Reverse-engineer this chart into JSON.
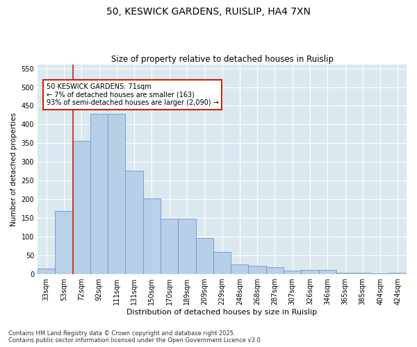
{
  "title1": "50, KESWICK GARDENS, RUISLIP, HA4 7XN",
  "title2": "Size of property relative to detached houses in Ruislip",
  "xlabel": "Distribution of detached houses by size in Ruislip",
  "ylabel": "Number of detached properties",
  "categories": [
    "33sqm",
    "53sqm",
    "72sqm",
    "92sqm",
    "111sqm",
    "131sqm",
    "150sqm",
    "170sqm",
    "189sqm",
    "209sqm",
    "229sqm",
    "248sqm",
    "268sqm",
    "287sqm",
    "307sqm",
    "326sqm",
    "346sqm",
    "365sqm",
    "385sqm",
    "404sqm",
    "424sqm"
  ],
  "values": [
    15,
    170,
    357,
    428,
    428,
    277,
    202,
    149,
    149,
    97,
    59,
    27,
    22,
    18,
    10,
    12,
    12,
    5,
    4,
    2,
    4
  ],
  "bar_color": "#b8cfe8",
  "bar_edge_color": "#6699cc",
  "vline_color": "#cc2200",
  "annotation_text": "50 KESWICK GARDENS: 71sqm\n← 7% of detached houses are smaller (163)\n93% of semi-detached houses are larger (2,090) →",
  "annotation_box_color": "#ffffff",
  "annotation_box_edge_color": "#cc2200",
  "ylim": [
    0,
    560
  ],
  "yticks": [
    0,
    50,
    100,
    150,
    200,
    250,
    300,
    350,
    400,
    450,
    500,
    550
  ],
  "bg_color": "#dce8f0",
  "fig_bg_color": "#ffffff",
  "footer1": "Contains HM Land Registry data © Crown copyright and database right 2025.",
  "footer2": "Contains public sector information licensed under the Open Government Licence v3.0."
}
